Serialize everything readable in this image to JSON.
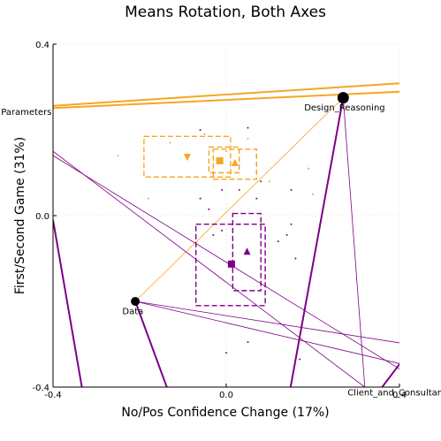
{
  "chart_data": {
    "type": "scatter",
    "title": "Means Rotation, Both Axes",
    "xlabel": "No/Pos Confidence Change (17%)",
    "ylabel": "First/Second Game (31%)",
    "xlim": [
      -0.4,
      0.4
    ],
    "ylim": [
      -0.4,
      0.4
    ],
    "xticks": [
      {
        "value": -0.4,
        "label": "-0.4"
      },
      {
        "value": 0.0,
        "label": "0.0"
      },
      {
        "value": 0.4,
        "label": "0.4"
      }
    ],
    "yticks": [
      {
        "value": -0.4,
        "label": "-0.4"
      },
      {
        "value": 0.0,
        "label": "0.0"
      },
      {
        "value": 0.4,
        "label": "0.4"
      }
    ],
    "grid": true,
    "colors": {
      "orange": "#f5a623",
      "purple": "#7d0086"
    },
    "anchors": [
      {
        "label": "Design_Reasoning",
        "x": 0.27,
        "y": 0.275,
        "label_dx": -0.09,
        "label_dy": -0.03
      },
      {
        "label": "Data",
        "x": -0.21,
        "y": -0.2,
        "label_dx": -0.03,
        "label_dy": -0.03
      },
      {
        "label": "Parameters",
        "x": -0.4,
        "y": 0.235,
        "label_dx": -0.12,
        "label_dy": 0.0
      },
      {
        "label": "Client_and_Consultant_Requests",
        "x": 0.32,
        "y": -0.4,
        "label_dx": -0.04,
        "label_dy": -0.02
      }
    ],
    "thick_lines": [
      {
        "color": "orange",
        "x1": -0.42,
        "y1": 0.255,
        "x2": 0.42,
        "y2": 0.31
      },
      {
        "color": "orange",
        "x1": -0.42,
        "y1": 0.25,
        "x2": 0.42,
        "y2": 0.29
      },
      {
        "color": "purple",
        "x1": 0.27,
        "y1": 0.275,
        "x2": 0.145,
        "y2": -0.42
      },
      {
        "color": "purple",
        "x1": -0.21,
        "y1": -0.2,
        "x2": -0.13,
        "y2": -0.42
      },
      {
        "color": "purple",
        "x1": -0.4,
        "y1": -0.01,
        "x2": -0.33,
        "y2": -0.42
      },
      {
        "color": "purple",
        "x1": 0.36,
        "y1": -0.4,
        "x2": 0.42,
        "y2": -0.32
      }
    ],
    "thin_lines": [
      {
        "color": "orange",
        "x1": -0.21,
        "y1": -0.2,
        "x2": 0.27,
        "y2": 0.275
      },
      {
        "color": "purple",
        "x1": 0.27,
        "y1": 0.275,
        "x2": 0.32,
        "y2": -0.4
      },
      {
        "color": "purple",
        "x1": -0.21,
        "y1": -0.2,
        "x2": 0.42,
        "y2": -0.35
      },
      {
        "color": "purple",
        "x1": -0.21,
        "y1": -0.2,
        "x2": 0.42,
        "y2": -0.3
      },
      {
        "color": "purple",
        "x1": -0.4,
        "y1": 0.15,
        "x2": 0.32,
        "y2": -0.4
      },
      {
        "color": "purple",
        "x1": -0.4,
        "y1": 0.14,
        "x2": 0.42,
        "y2": -0.37
      }
    ],
    "boxes": [
      {
        "color": "orange",
        "x0": -0.19,
        "x1": 0.01,
        "y0": 0.09,
        "y1": 0.185
      },
      {
        "color": "orange",
        "x0": -0.03,
        "x1": 0.07,
        "y0": 0.085,
        "y1": 0.155
      },
      {
        "color": "orange",
        "x0": -0.04,
        "x1": 0.03,
        "y0": 0.1,
        "y1": 0.16
      },
      {
        "color": "purple",
        "x0": -0.07,
        "x1": 0.09,
        "y0": -0.21,
        "y1": -0.02
      },
      {
        "color": "purple",
        "x0": 0.015,
        "x1": 0.08,
        "y0": -0.175,
        "y1": 0.005
      }
    ],
    "means": [
      {
        "color": "orange",
        "marker": "triangle-down",
        "x": -0.09,
        "y": 0.138
      },
      {
        "color": "orange",
        "marker": "square",
        "x": -0.015,
        "y": 0.128
      },
      {
        "color": "orange",
        "marker": "triangle-up",
        "x": 0.02,
        "y": 0.122
      },
      {
        "color": "purple",
        "marker": "square",
        "x": 0.012,
        "y": -0.113
      },
      {
        "color": "purple",
        "marker": "triangle-up",
        "x": 0.048,
        "y": -0.085
      }
    ],
    "dots": [
      {
        "color": "orange",
        "x": -0.25,
        "y": 0.14
      },
      {
        "color": "orange",
        "x": -0.13,
        "y": 0.17
      },
      {
        "color": "orange",
        "x": -0.05,
        "y": 0.19
      },
      {
        "color": "orange",
        "x": -0.02,
        "y": 0.13
      },
      {
        "color": "orange",
        "x": 0.0,
        "y": 0.15
      },
      {
        "color": "orange",
        "x": 0.05,
        "y": 0.18
      },
      {
        "color": "orange",
        "x": 0.07,
        "y": 0.14
      },
      {
        "color": "orange",
        "x": 0.1,
        "y": 0.08
      },
      {
        "color": "orange",
        "x": -0.18,
        "y": 0.04
      },
      {
        "color": "orange",
        "x": 0.19,
        "y": 0.11
      },
      {
        "color": "orange",
        "x": 0.2,
        "y": 0.05
      },
      {
        "color": "orange",
        "x": -0.05,
        "y": 0.09
      },
      {
        "color": "purple",
        "x": -0.06,
        "y": 0.2
      },
      {
        "color": "purple",
        "x": 0.05,
        "y": 0.205
      },
      {
        "color": "purple",
        "x": -0.01,
        "y": 0.06
      },
      {
        "color": "purple",
        "x": 0.03,
        "y": 0.06
      },
      {
        "color": "purple",
        "x": 0.08,
        "y": 0.08
      },
      {
        "color": "purple",
        "x": 0.15,
        "y": 0.06
      },
      {
        "color": "purple",
        "x": -0.06,
        "y": 0.04
      },
      {
        "color": "purple",
        "x": 0.07,
        "y": 0.04
      },
      {
        "color": "purple",
        "x": -0.04,
        "y": 0.015
      },
      {
        "color": "purple",
        "x": -0.03,
        "y": -0.045
      },
      {
        "color": "purple",
        "x": -0.01,
        "y": -0.035
      },
      {
        "color": "purple",
        "x": 0.03,
        "y": -0.02
      },
      {
        "color": "purple",
        "x": 0.14,
        "y": -0.045
      },
      {
        "color": "purple",
        "x": 0.12,
        "y": -0.06
      },
      {
        "color": "purple",
        "x": 0.15,
        "y": -0.02
      },
      {
        "color": "purple",
        "x": 0.16,
        "y": -0.1
      },
      {
        "color": "purple",
        "x": 0.05,
        "y": -0.295
      },
      {
        "color": "purple",
        "x": 0.0,
        "y": -0.32
      },
      {
        "color": "purple",
        "x": 0.17,
        "y": -0.335
      }
    ]
  }
}
